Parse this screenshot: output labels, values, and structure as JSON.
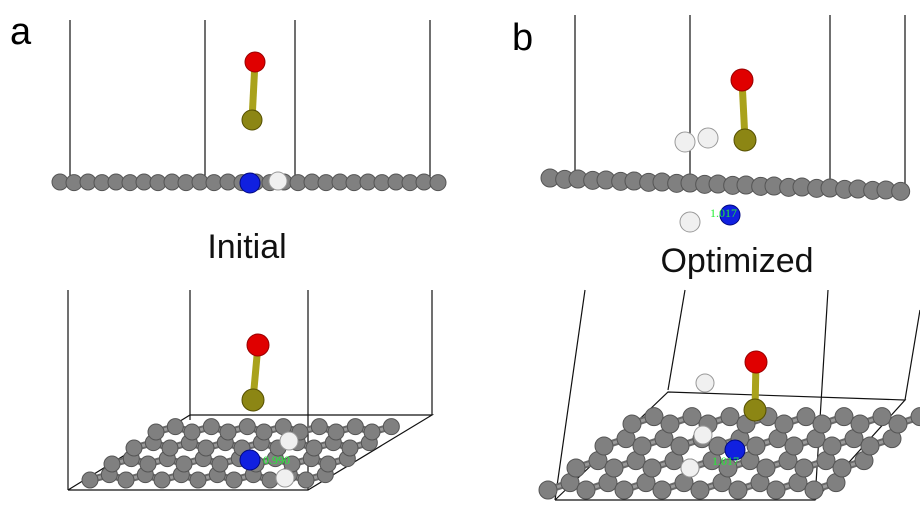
{
  "panels": [
    {
      "label": "a",
      "caption": "Initial",
      "bond_labels": [
        "0.990"
      ]
    },
    {
      "label": "b",
      "caption": "Optimized",
      "bond_labels": [
        "1.017",
        "1.017"
      ]
    }
  ]
}
